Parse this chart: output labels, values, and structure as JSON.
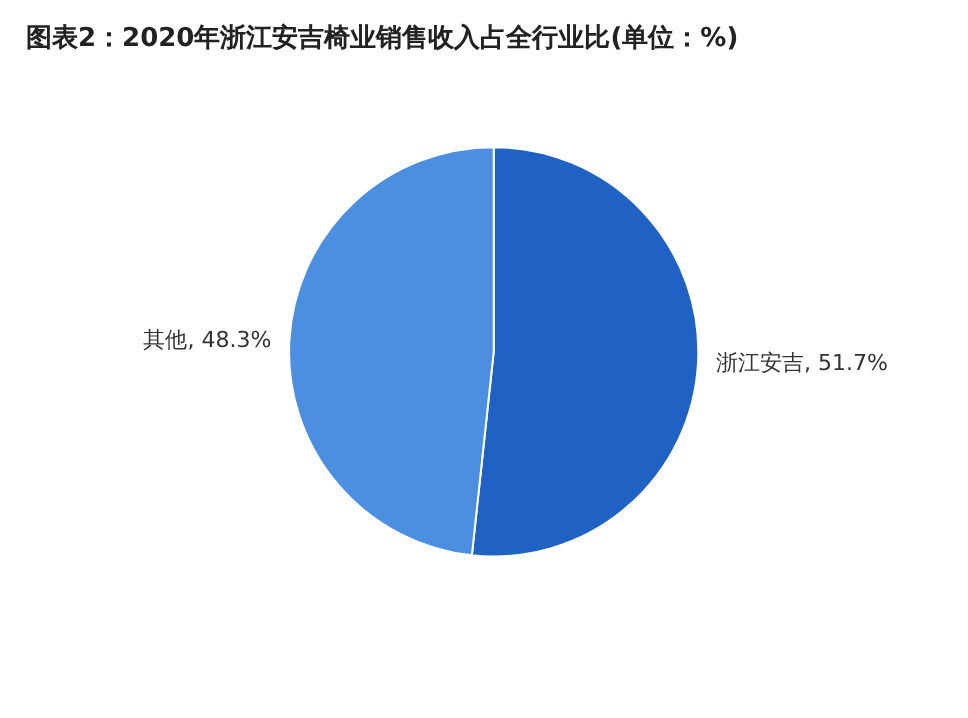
{
  "chart_data": {
    "type": "pie",
    "title": "图表2：2020年浙江安吉椅业销售收入占全行业比(单位：%)",
    "categories": [
      "浙江安吉",
      "其他"
    ],
    "values": [
      51.7,
      48.3
    ],
    "value_labels": [
      "51.7%",
      "48.3%"
    ],
    "colors": [
      "#1f62c4",
      "#4c8fe0"
    ],
    "legend": false
  }
}
